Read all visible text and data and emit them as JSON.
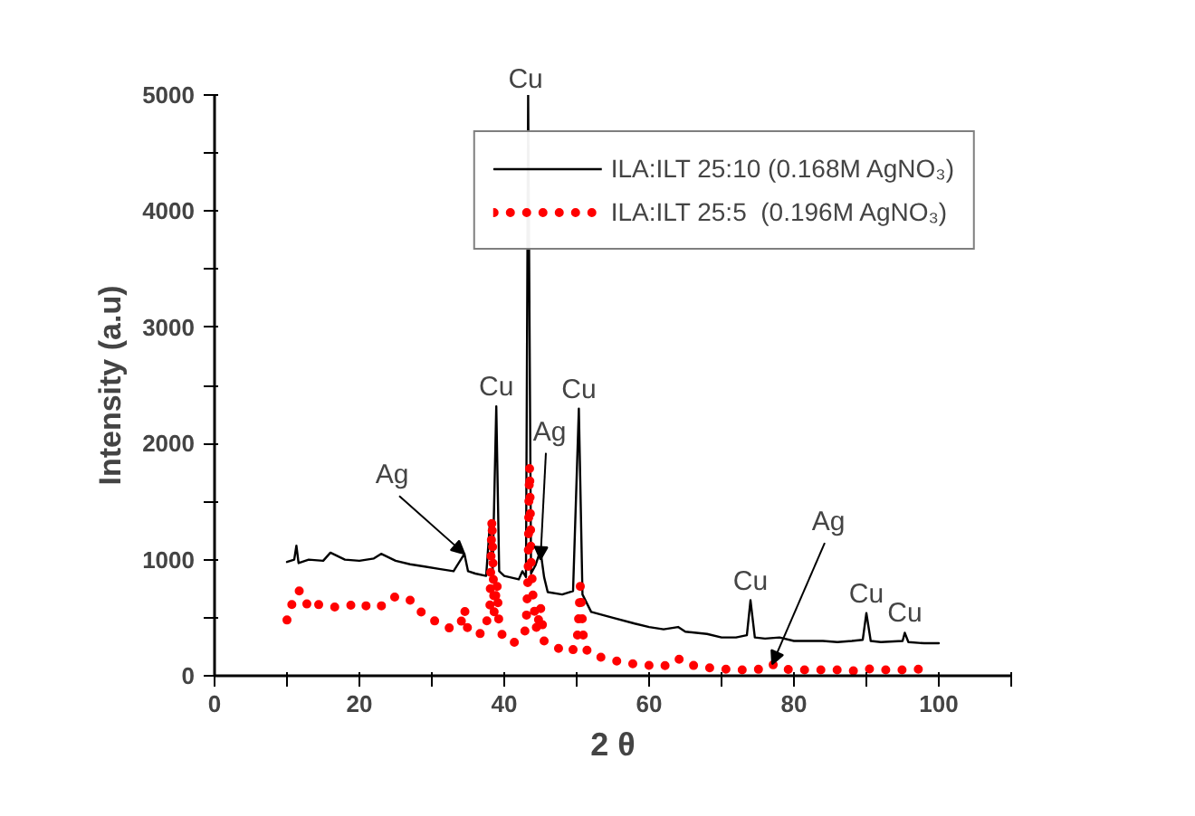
{
  "chart_data": {
    "type": "line",
    "xlabel": "2 θ",
    "ylabel": "Intensity (a.u)",
    "xlim": [
      0,
      110
    ],
    "ylim": [
      0,
      5000
    ],
    "xticks": [
      0,
      {
        "value": 10,
        "label": null
      },
      20,
      {
        "value": 30,
        "label": null
      },
      40,
      {
        "value": 50,
        "label": null
      },
      60,
      {
        "value": 70,
        "label": null
      },
      80,
      {
        "value": 90,
        "label": null
      },
      100,
      {
        "value": 110,
        "label": null
      }
    ],
    "yticks": [
      0,
      {
        "value": 500,
        "label": null
      },
      1000,
      {
        "value": 1500,
        "label": null
      },
      2000,
      {
        "value": 2500,
        "label": null
      },
      3000,
      {
        "value": 3500,
        "label": null
      },
      4000,
      {
        "value": 4500,
        "label": null
      },
      5000
    ],
    "grid": false,
    "legend": "top right",
    "series": [
      {
        "name": "ILA:ILT 25:10 (0.168M AgNO₃)",
        "color": "#000000",
        "line_style": "solid",
        "x": [
          10,
          11,
          11.3,
          11.6,
          13,
          15,
          16,
          18,
          20,
          22,
          23,
          25,
          27,
          29,
          31,
          33,
          34,
          34.5,
          35,
          36,
          37.5,
          38,
          38.4,
          38.9,
          39.3,
          40,
          42,
          42.5,
          43,
          43.3,
          43.7,
          44.3,
          45,
          45.5,
          46,
          48,
          49.5,
          50.3,
          50.8,
          52,
          55,
          58,
          60,
          62,
          64,
          65,
          68,
          70,
          72,
          73.5,
          74,
          74.6,
          76,
          78,
          80,
          84,
          86,
          88,
          89.5,
          90,
          90.6,
          92,
          95,
          95.3,
          95.8,
          98,
          100
        ],
        "values": [
          980,
          1000,
          1120,
          970,
          1000,
          990,
          1060,
          1000,
          990,
          1010,
          1050,
          990,
          960,
          940,
          920,
          900,
          1000,
          1050,
          900,
          880,
          860,
          1300,
          900,
          2320,
          900,
          860,
          830,
          900,
          850,
          5000,
          880,
          950,
          1080,
          850,
          720,
          700,
          730,
          2300,
          700,
          550,
          500,
          450,
          420,
          400,
          420,
          380,
          360,
          330,
          330,
          350,
          650,
          330,
          320,
          330,
          300,
          300,
          290,
          300,
          310,
          540,
          300,
          290,
          300,
          370,
          290,
          280,
          280
        ]
      },
      {
        "name": "ILA:ILT 25:5  (0.196M AgNO₃)",
        "color": "#ff0000",
        "line_style": "dotted",
        "x": [
          10,
          11,
          11.5,
          12,
          13,
          14,
          15,
          17,
          19,
          20,
          21,
          22,
          23,
          24,
          25,
          26,
          27,
          28,
          29,
          30,
          31,
          32,
          33,
          34,
          34.5,
          35,
          36,
          37,
          38,
          38.1,
          38.2,
          38.3,
          38.6,
          39,
          39.3,
          40,
          41,
          42,
          43,
          43.3,
          43.4,
          43.5,
          43.7,
          44,
          44.5,
          45,
          45.5,
          46,
          47,
          48,
          49,
          50,
          50.3,
          50.5,
          51,
          52,
          54,
          56,
          58,
          60,
          62,
          64,
          65,
          68,
          70,
          72,
          74,
          76,
          77,
          78,
          80,
          82,
          84,
          86,
          88,
          90,
          92,
          94,
          96,
          98
        ],
        "values": [
          480,
          680,
          730,
          730,
          580,
          620,
          600,
          590,
          610,
          630,
          600,
          620,
          600,
          660,
          680,
          680,
          650,
          570,
          530,
          480,
          460,
          420,
          400,
          450,
          580,
          380,
          370,
          360,
          550,
          820,
          1100,
          1350,
          550,
          800,
          400,
          320,
          280,
          300,
          400,
          900,
          1500,
          1800,
          1000,
          650,
          380,
          600,
          300,
          280,
          250,
          220,
          200,
          250,
          520,
          770,
          250,
          180,
          150,
          120,
          100,
          90,
          80,
          150,
          100,
          70,
          60,
          50,
          50,
          60,
          100,
          60,
          50,
          50,
          50,
          50,
          40,
          60,
          50,
          50,
          50,
          60
        ]
      }
    ],
    "annotations": [
      {
        "text": "Cu",
        "x": 43.3,
        "y": 5000
      },
      {
        "text": "Cu",
        "x": 38.9,
        "y": 2320
      },
      {
        "text": "Cu",
        "x": 50.3,
        "y": 2300
      },
      {
        "text": "Cu",
        "x": 74,
        "y": 650
      },
      {
        "text": "Cu",
        "x": 90,
        "y": 540
      },
      {
        "text": "Cu",
        "x": 95.3,
        "y": 370
      },
      {
        "text": "Ag",
        "x": 34.5,
        "y": 1050
      },
      {
        "text": "Ag",
        "x": 45,
        "y": 1000
      },
      {
        "text": "Ag",
        "x": 77,
        "y": 100
      }
    ]
  }
}
